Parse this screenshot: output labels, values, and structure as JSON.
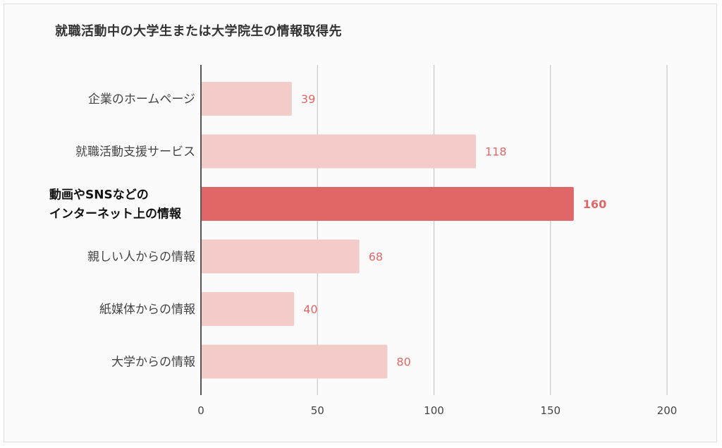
{
  "chart_data": {
    "type": "bar",
    "orientation": "horizontal",
    "title": "就職活動中の大学生または大学院生の情報取得先",
    "categories": [
      "企業のホームページ",
      "就職活動支援サービス",
      "動画やSNSなどの\nインターネット上の情報",
      "親しい人からの情報",
      "紙媒体からの情報",
      "大学からの情報"
    ],
    "values": [
      39,
      118,
      160,
      68,
      40,
      80
    ],
    "highlight_index": 2,
    "xlim": [
      0,
      200
    ],
    "xticks": [
      0,
      50,
      100,
      150,
      200
    ],
    "grid": "vertical",
    "colors": {
      "bar": "#f3cbc9",
      "bar_highlight": "#e06767",
      "value_label": "#e06767",
      "grid": "#c8c8c8",
      "axis": "#555555"
    }
  }
}
